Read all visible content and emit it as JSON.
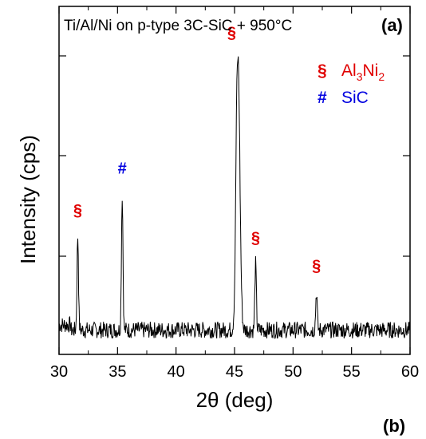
{
  "chart_data": {
    "type": "line",
    "title": "Ti/Al/Ni on p-type 3C-SiC + 950°C",
    "panel_label_top": "(a)",
    "panel_label_bottom": "(b)",
    "xlabel": "2θ (deg)",
    "ylabel": "Intensity (cps)",
    "xlim": [
      30,
      60
    ],
    "ylim": [
      0,
      100
    ],
    "xticks": [
      "30",
      "35",
      "40",
      "45",
      "50",
      "55",
      "60"
    ],
    "y_scale_labels": "none",
    "legend": [
      {
        "symbol": "§",
        "label_main": "Al",
        "sub1": "3",
        "mid": "Ni",
        "sub2": "2",
        "color": "#e00000"
      },
      {
        "symbol": "#",
        "label_main": "SiC",
        "color": "#0000e0"
      }
    ],
    "peaks": [
      {
        "x": 31.6,
        "y": 34,
        "symbol": "§",
        "phase": "Al3Ni2",
        "color": "#e00000"
      },
      {
        "x": 35.4,
        "y": 46,
        "symbol": "#",
        "phase": "SiC",
        "color": "#0000e0"
      },
      {
        "x": 45.3,
        "y": 85,
        "symbol": "§",
        "phase": "Al3Ni2",
        "color": "#e00000"
      },
      {
        "x": 46.8,
        "y": 26,
        "symbol": "§",
        "phase": "Al3Ni2",
        "color": "#e00000"
      },
      {
        "x": 52.0,
        "y": 18,
        "symbol": "§",
        "phase": "Al3Ni2",
        "color": "#e00000"
      }
    ],
    "baseline": 7,
    "noise": 2.4,
    "line_color": "#000000"
  }
}
